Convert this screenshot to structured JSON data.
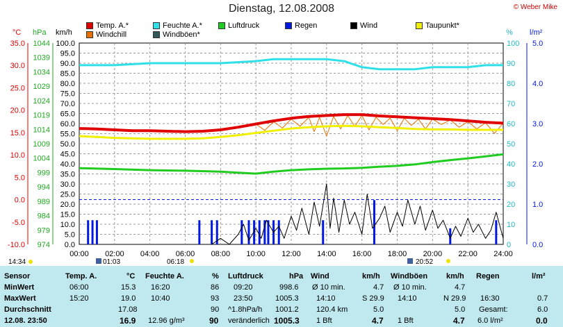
{
  "title": "Dienstag, 12.08.2008",
  "credit": "© Weber Mike",
  "legend": [
    {
      "label": "Temp. A.*",
      "color": "#e00000"
    },
    {
      "label": "Feuchte A.*",
      "color": "#30e0e8"
    },
    {
      "label": "Luftdruck",
      "color": "#20cc20"
    },
    {
      "label": "Regen",
      "color": "#0018e0"
    },
    {
      "label": "Wind",
      "color": "#000000"
    },
    {
      "label": "Taupunkt*",
      "color": "#f0f000"
    },
    {
      "label": "Windchill",
      "color": "#e87000"
    },
    {
      "label": "Windböen*",
      "color": "#305858"
    }
  ],
  "axes": {
    "temp_unit": "°C",
    "press_unit": "hPa",
    "wind_unit": "km/h",
    "hum_unit": "%",
    "rain_unit": "l/m²",
    "temp_ticks": [
      "35.0",
      "30.0",
      "25.0",
      "20.0",
      "15.0",
      "10.0",
      "5.0",
      "0.0",
      "-5.0",
      "-10.0"
    ],
    "press_ticks": [
      "1044",
      "1039",
      "1034",
      "1029",
      "1024",
      "1019",
      "1014",
      "1009",
      "1004",
      "999",
      "994",
      "989",
      "984",
      "979",
      "974"
    ],
    "wind_ticks": [
      "100.0",
      "95.0",
      "90.0",
      "85.0",
      "80.0",
      "75.0",
      "70.0",
      "65.0",
      "60.0",
      "55.0",
      "50.0",
      "45.0",
      "40.0",
      "35.0",
      "30.0",
      "25.0",
      "20.0",
      "15.0",
      "10.0",
      "5.0",
      "0.0"
    ],
    "hum_ticks": [
      "100",
      "90",
      "80",
      "70",
      "60",
      "50",
      "40",
      "30",
      "20",
      "10",
      "0"
    ],
    "rain_ticks": [
      "5.0",
      "4.0",
      "3.0",
      "2.0",
      "1.0",
      "0.0"
    ],
    "x_ticks": [
      "00:00",
      "02:00",
      "04:00",
      "06:00",
      "08:00",
      "10:00",
      "12:00",
      "14:00",
      "16:00",
      "18:00",
      "20:00",
      "22:00",
      "24:00"
    ]
  },
  "sun": {
    "moonset": "14:34",
    "moonrise_marker": "01:03",
    "sunrise": "06:18",
    "sunset": "20:52"
  },
  "chart_data": {
    "type": "line",
    "x_unit": "hours",
    "xlim": [
      0,
      24
    ],
    "temp_ylim": [
      -10,
      35
    ],
    "wind_ylim": [
      0,
      100
    ],
    "series": [
      {
        "name": "Temp. A.*",
        "color": "#e00000",
        "axis": "temp",
        "width": 4,
        "x": [
          0,
          1,
          2,
          3,
          4,
          5,
          6,
          7,
          8,
          9,
          10,
          11,
          12,
          13,
          14,
          15,
          16,
          17,
          18,
          19,
          20,
          21,
          22,
          23,
          24
        ],
        "values": [
          15.9,
          15.8,
          15.6,
          15.4,
          15.4,
          15.3,
          15.2,
          15.3,
          15.6,
          16.2,
          16.9,
          17.6,
          18.2,
          18.6,
          18.8,
          19.0,
          19.0,
          18.7,
          18.5,
          18.3,
          18.1,
          17.9,
          17.6,
          17.3,
          17.1
        ]
      },
      {
        "name": "Taupunkt*",
        "color": "#f0f000",
        "axis": "temp",
        "width": 3,
        "x": [
          0,
          1,
          2,
          3,
          4,
          5,
          6,
          7,
          8,
          9,
          10,
          11,
          12,
          13,
          14,
          15,
          16,
          17,
          18,
          19,
          20,
          21,
          22,
          23,
          24
        ],
        "values": [
          14.2,
          14.0,
          13.8,
          13.7,
          13.6,
          13.6,
          13.6,
          13.7,
          14.0,
          14.4,
          14.9,
          15.4,
          15.9,
          16.2,
          16.4,
          16.5,
          16.4,
          16.2,
          16.0,
          15.8,
          15.7,
          15.7,
          15.6,
          15.6,
          15.6
        ]
      },
      {
        "name": "Windchill",
        "color": "#e87000",
        "axis": "temp",
        "width": 1,
        "x": [
          10,
          10.5,
          11,
          11.5,
          12,
          12.5,
          13,
          13.3,
          13.6,
          14,
          14.4,
          14.8,
          15.2,
          15.6,
          16,
          16.4,
          16.8,
          17.2,
          17.6,
          18,
          18.4,
          18.8,
          19.2,
          19.6,
          20,
          20.5,
          21,
          21.5,
          22,
          22.5,
          23,
          23.5,
          24
        ],
        "values": [
          16.9,
          15.5,
          17.4,
          16.0,
          18.0,
          16.4,
          18.4,
          15.2,
          18.4,
          14.2,
          18.6,
          15.8,
          18.8,
          16.4,
          18.8,
          15.6,
          18.4,
          16.8,
          18.2,
          15.4,
          18.2,
          16.6,
          18.0,
          15.8,
          18.0,
          16.8,
          17.8,
          16.2,
          17.4,
          15.8,
          17.2,
          14.8,
          17.1
        ]
      },
      {
        "name": "Feuchte A.*",
        "color": "#30e0e8",
        "axis": "humidity",
        "width": 3,
        "x": [
          0,
          2,
          4,
          6,
          8,
          10,
          11,
          12,
          13,
          14,
          15,
          16,
          17,
          18,
          19,
          20,
          21,
          22,
          23,
          24
        ],
        "values": [
          89,
          89,
          90,
          90,
          90,
          91,
          92,
          92,
          92,
          92,
          91,
          88,
          87,
          87,
          87,
          88,
          88,
          88,
          89,
          89
        ]
      },
      {
        "name": "Luftdruck",
        "color": "#20cc20",
        "axis": "pressure",
        "width": 3,
        "x": [
          0,
          2,
          4,
          6,
          8,
          9,
          10,
          11,
          12,
          13,
          14,
          15,
          16,
          17,
          18,
          19,
          20,
          21,
          22,
          23,
          24
        ],
        "values": [
          1000.5,
          1000.2,
          999.8,
          999.6,
          999.3,
          998.9,
          998.6,
          999.3,
          999.8,
          1000.1,
          1000.3,
          1000.4,
          1000.6,
          1001.0,
          1001.3,
          1001.8,
          1002.6,
          1003.3,
          1003.9,
          1004.6,
          1005.3
        ]
      },
      {
        "name": "Wind",
        "color": "#000000",
        "axis": "wind",
        "width": 1,
        "x": [
          7.5,
          8,
          8.5,
          9,
          9.3,
          9.6,
          10,
          10.3,
          10.6,
          11,
          11.3,
          11.6,
          12,
          12.3,
          12.6,
          13,
          13.3,
          13.6,
          14,
          14.2,
          14.4,
          14.7,
          15,
          15.3,
          15.6,
          16,
          16.3,
          16.6,
          17,
          17.3,
          17.6,
          18,
          18.3,
          18.6,
          19,
          19.3,
          19.6,
          20,
          20.3,
          20.6,
          21,
          21.3,
          21.6,
          22,
          22.3,
          22.6,
          23,
          23.3,
          23.6,
          24
        ],
        "values": [
          0,
          3,
          0,
          5,
          10,
          2,
          8,
          3,
          12,
          6,
          9,
          3,
          14,
          7,
          18,
          5,
          21,
          9,
          30,
          8,
          23,
          6,
          22,
          10,
          16,
          5,
          25,
          8,
          13,
          19,
          6,
          16,
          9,
          22,
          10,
          19,
          7,
          17,
          8,
          12,
          3,
          9,
          4,
          13,
          6,
          10,
          3,
          7,
          16,
          3
        ]
      }
    ],
    "rain": {
      "name": "Regen",
      "color": "#0018e0",
      "axis": "rain",
      "x": [
        0.5,
        0.75,
        1.0,
        6.8,
        7.5,
        7.8,
        9.2,
        9.6,
        9.9,
        10.2,
        10.5,
        10.7,
        11.0,
        11.3,
        13.8,
        16.7,
        21.0,
        23.6
      ],
      "values": [
        0.6,
        0.6,
        0.6,
        0.6,
        0.6,
        0.6,
        0.6,
        0.6,
        0.6,
        0.6,
        0.6,
        0.6,
        0.6,
        0.6,
        0.6,
        1.1,
        0.4,
        0.6
      ]
    },
    "reference_line": {
      "axis": "temp",
      "value": 0.0,
      "style": "dashed",
      "color": "#0018e0"
    }
  },
  "table": {
    "row_labels": {
      "sensor": "Sensor",
      "min": "MinWert",
      "max": "MaxWert",
      "avg": "Durchschnitt",
      "now": "12.08. 23:50"
    },
    "temp": {
      "head": "Temp. A.",
      "unit": "°C",
      "min_time": "06:00",
      "min": "15.3",
      "max_time": "15:20",
      "max": "19.0",
      "avg": "17.08",
      "now": "16.9"
    },
    "hum": {
      "head": "Feuchte A.",
      "unit": "%",
      "min_time": "16:20",
      "min": "86",
      "max_time": "10:40",
      "max": "93",
      "avg": "90",
      "extra": "12.96 g/m³",
      "now": "90"
    },
    "press": {
      "head": "Luftdruck",
      "unit": "hPa",
      "min_time": "09:20",
      "min": "998.6",
      "max_time": "23:50",
      "max": "1005.3",
      "trend": "^1.8hPa/h",
      "avg": "1001.2",
      "status": "veränderlich",
      "now": "1005.3"
    },
    "wind": {
      "head": "Wind",
      "unit": "km/h",
      "avg_lbl": "Ø 10 min.",
      "avg10": "4.7",
      "max_time": "14:10",
      "max": "S 29.9",
      "dist": "120.4 km",
      "dist_val": "5.0",
      "bft": "1 Bft",
      "now": "4.7"
    },
    "gust": {
      "head": "Windböen",
      "unit": "km/h",
      "avg_lbl": "Ø 10 min.",
      "avg10": "4.7",
      "max_time": "14:10",
      "max": "N 29.9",
      "avg": "5.0",
      "bft": "1 Bft",
      "now": "4.7"
    },
    "rain": {
      "head": "Regen",
      "unit": "l/m²",
      "max_time": "16:30",
      "max": "0.7",
      "total_lbl": "Gesamt:",
      "total": "6.0",
      "rate": "6.0 l/m²",
      "now": "0.0"
    }
  }
}
